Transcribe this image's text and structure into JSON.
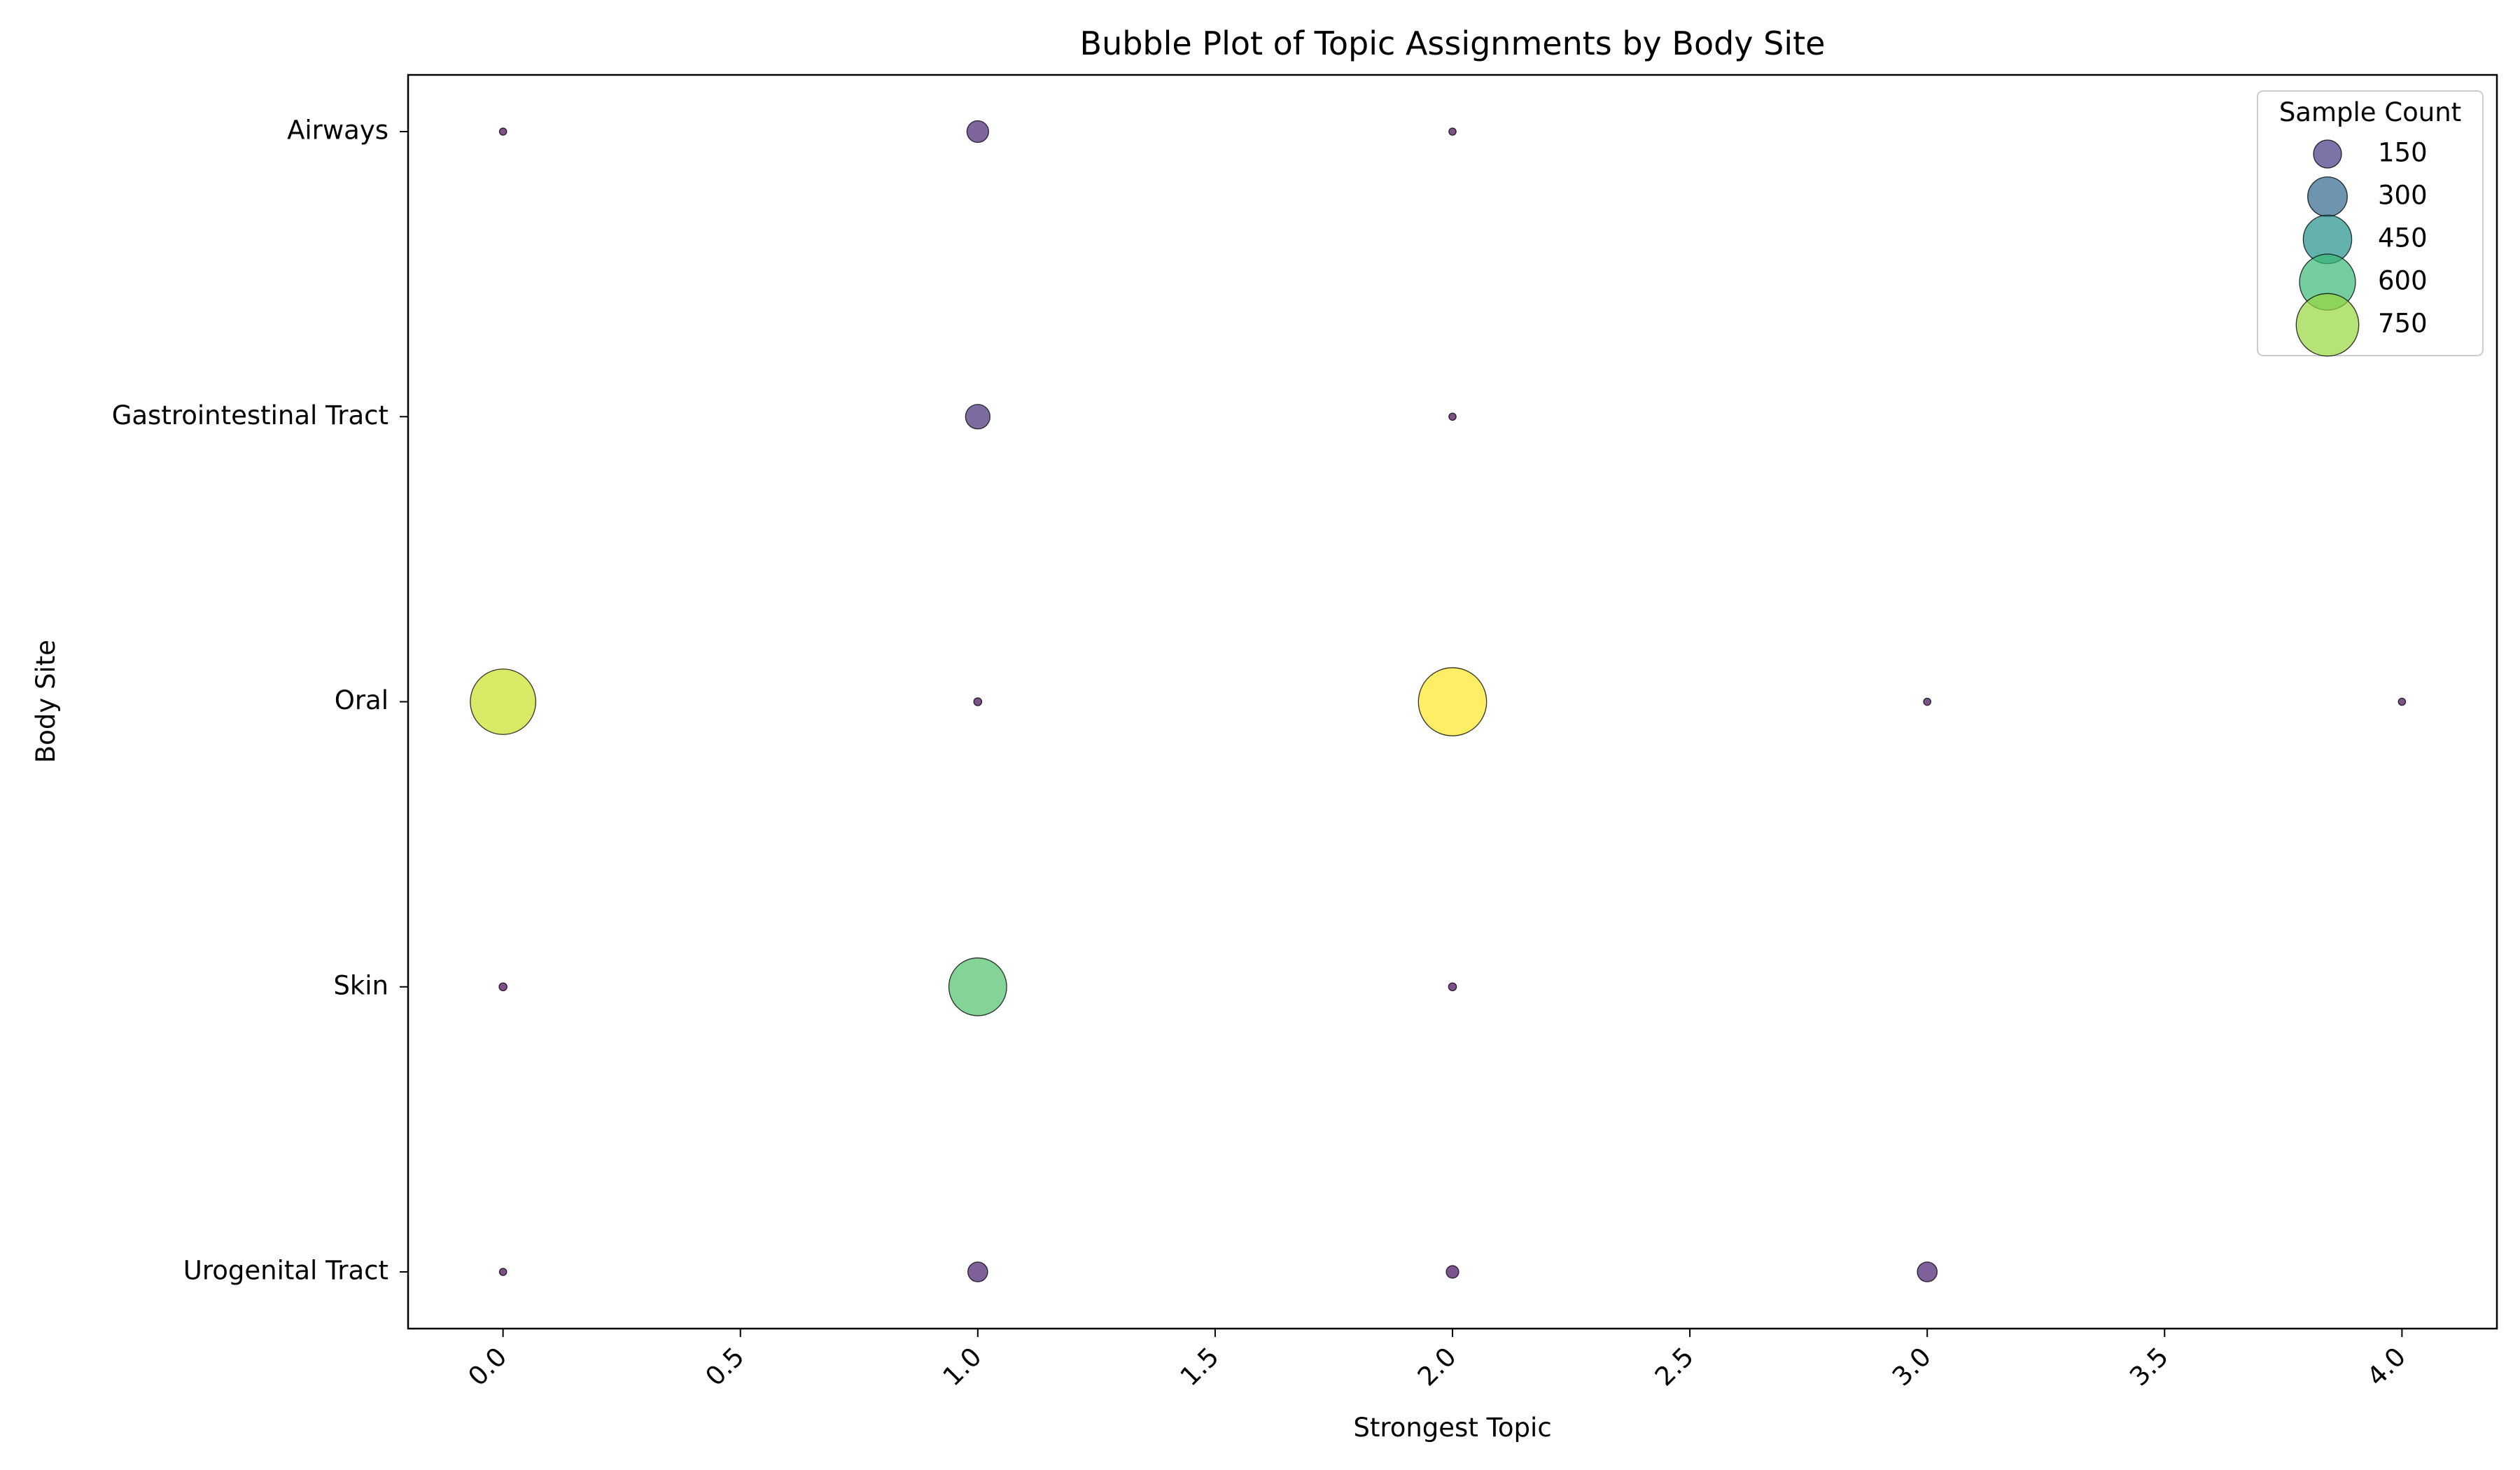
{
  "chart_data": {
    "type": "scatter",
    "title": "Bubble Plot of Topic Assignments by Body Site",
    "xlabel": "Strongest Topic",
    "ylabel": "Body Site",
    "xlim": [
      -0.2,
      4.2
    ],
    "x_ticks": [
      0.0,
      0.5,
      1.0,
      1.5,
      2.0,
      2.5,
      3.0,
      3.5,
      4.0
    ],
    "x_tick_labels": [
      "0.0",
      "0.5",
      "1.0",
      "1.5",
      "2.0",
      "2.5",
      "3.0",
      "3.5",
      "4.0"
    ],
    "categories": [
      "Airways",
      "Gastrointestinal Tract",
      "Oral",
      "Skin",
      "Urogenital Tract"
    ],
    "grid": false,
    "size_scale": "area proportional to Sample Count",
    "color_scale": "viridis",
    "color_range": [
      1,
      890
    ],
    "legend": {
      "title": "Sample Count",
      "placement": "top-right",
      "values": [
        150,
        300,
        450,
        600,
        750
      ],
      "labels": [
        "150",
        "300",
        "450",
        "600",
        "750"
      ]
    },
    "points": [
      {
        "site": "Airways",
        "topic": 0,
        "count": 10
      },
      {
        "site": "Airways",
        "topic": 1,
        "count": 90
      },
      {
        "site": "Airways",
        "topic": 2,
        "count": 10
      },
      {
        "site": "Gastrointestinal Tract",
        "topic": 1,
        "count": 115
      },
      {
        "site": "Gastrointestinal Tract",
        "topic": 2,
        "count": 10
      },
      {
        "site": "Oral",
        "topic": 0,
        "count": 820
      },
      {
        "site": "Oral",
        "topic": 1,
        "count": 12
      },
      {
        "site": "Oral",
        "topic": 2,
        "count": 890
      },
      {
        "site": "Oral",
        "topic": 3,
        "count": 10
      },
      {
        "site": "Oral",
        "topic": 4,
        "count": 10
      },
      {
        "site": "Skin",
        "topic": 0,
        "count": 12
      },
      {
        "site": "Skin",
        "topic": 1,
        "count": 640
      },
      {
        "site": "Skin",
        "topic": 2,
        "count": 12
      },
      {
        "site": "Urogenital Tract",
        "topic": 0,
        "count": 10
      },
      {
        "site": "Urogenital Tract",
        "topic": 1,
        "count": 75
      },
      {
        "site": "Urogenital Tract",
        "topic": 2,
        "count": 30
      },
      {
        "site": "Urogenital Tract",
        "topic": 3,
        "count": 75
      }
    ]
  }
}
